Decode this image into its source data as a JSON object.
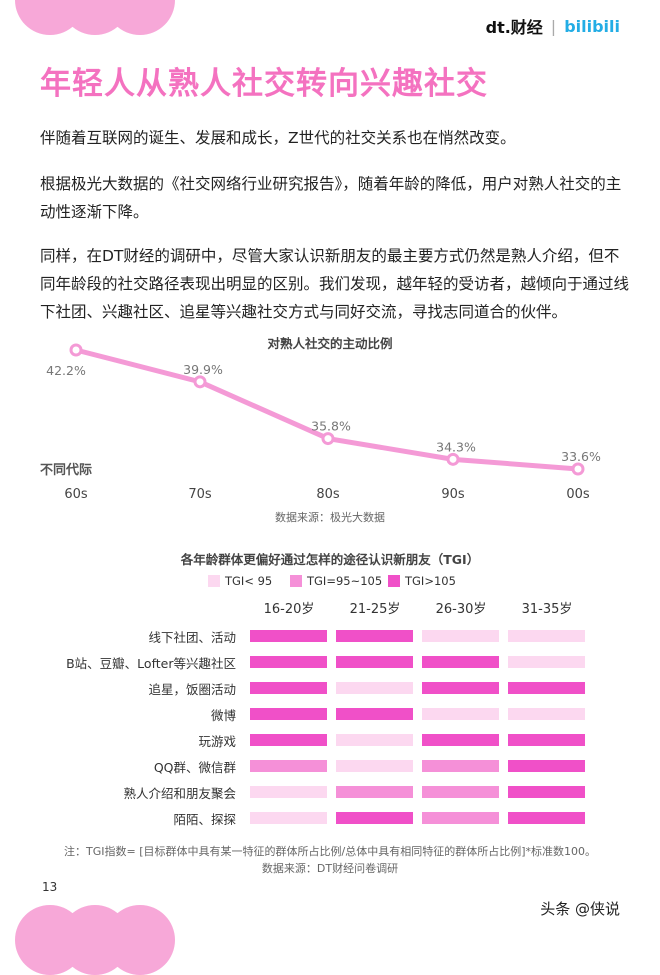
{
  "header": {
    "logo_dt": "dt.财经",
    "logo_bili": "bilibili"
  },
  "title": "年轻人从熟人社交转向兴趣社交",
  "paragraphs": [
    "伴随着互联网的诞生、发展和成长，Z世代的社交关系也在悄然改变。",
    "根据极光大数据的《社交网络行业研究报告》，随着年龄的降低，用户对熟人社交的主动性逐渐下降。",
    "同样，在DT财经的调研中，尽管大家认识新朋友的最主要方式仍然是熟人介绍，但不同年龄段的社交路径表现出明显的区别。我们发现，越年轻的受访者，越倾向于通过线下社团、兴趣社区、追星等兴趣社交方式与同好交流，寻找志同道合的伙伴。"
  ],
  "colors": {
    "title": "#f472c0",
    "line": "#f49ad6",
    "high": "#f050c8",
    "mid": "#f590d8",
    "low": "#fcd8f0"
  },
  "chart_data": [
    {
      "type": "line",
      "title": "对熟人社交的主动比例",
      "xlabel": "不同代际",
      "categories": [
        "60s",
        "70s",
        "80s",
        "90s",
        "00s"
      ],
      "values": [
        42.2,
        39.9,
        35.8,
        34.3,
        33.6
      ],
      "labels": [
        "42.2%",
        "39.9%",
        "35.8%",
        "34.3%",
        "33.6%"
      ],
      "source": "数据来源：极光大数据",
      "grid": false
    },
    {
      "type": "heatmap",
      "title": "各年龄群体更偏好通过怎样的途径认识新朋友（TGI）",
      "legend": [
        {
          "label": "TGI< 95",
          "level": "low"
        },
        {
          "label": "TGI=95~105",
          "level": "mid"
        },
        {
          "label": "TGI>105",
          "level": "high"
        }
      ],
      "columns": [
        "16-20岁",
        "21-25岁",
        "26-30岁",
        "31-35岁"
      ],
      "rows": [
        "线下社团、活动",
        "B站、豆瓣、Lofter等兴趣社区",
        "追星，饭圈活动",
        "微博",
        "玩游戏",
        "QQ群、微信群",
        "熟人介绍和朋友聚会",
        "陌陌、探探"
      ],
      "levels": [
        [
          "high",
          "high",
          "low",
          "low"
        ],
        [
          "high",
          "high",
          "high",
          "low"
        ],
        [
          "high",
          "low",
          "high",
          "high"
        ],
        [
          "high",
          "high",
          "low",
          "low"
        ],
        [
          "high",
          "low",
          "high",
          "high"
        ],
        [
          "mid",
          "low",
          "mid",
          "high"
        ],
        [
          "low",
          "mid",
          "mid",
          "high"
        ],
        [
          "low",
          "high",
          "mid",
          "high"
        ]
      ],
      "note": "注：TGI指数= [目标群体中具有某一特征的群体所占比例/总体中具有相同特征的群体所占比例]*标准数100。",
      "source": "数据来源：DT财经问卷调研"
    }
  ],
  "footer": {
    "page": "13",
    "watermark": "头条 @侠说"
  }
}
